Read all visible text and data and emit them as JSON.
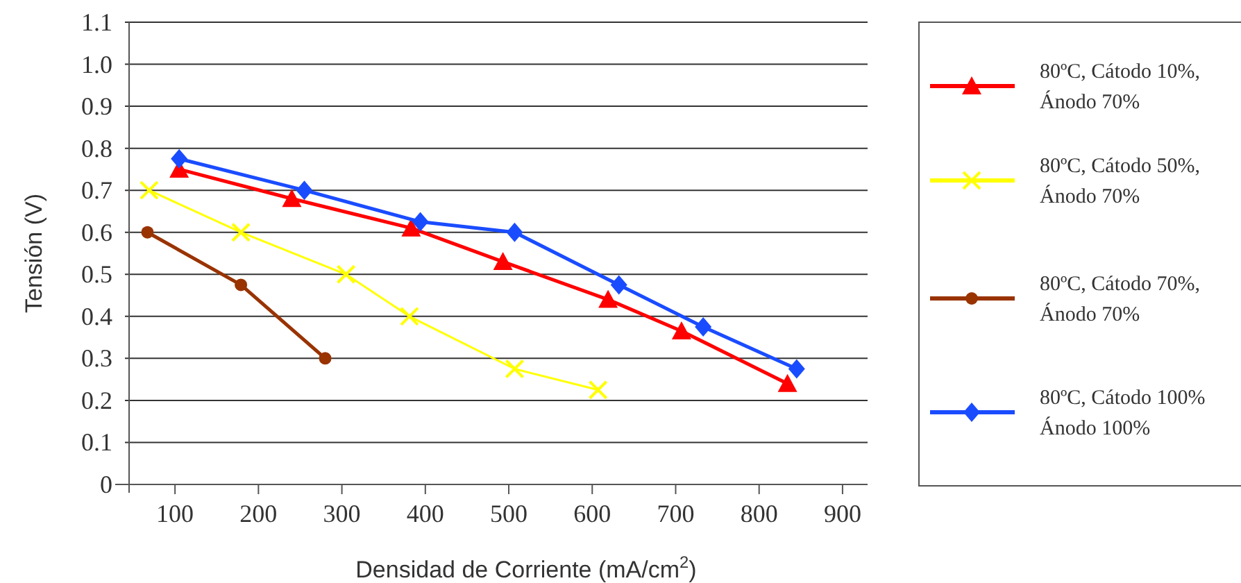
{
  "chart_data": {
    "type": "line",
    "xlabel": "Densidad de Corriente (mA/cm$^{2}$)",
    "ylabel": "Tensión (V)",
    "xlim": [
      45,
      930
    ],
    "xticks": [
      100,
      200,
      300,
      400,
      500,
      600,
      700,
      800,
      900
    ],
    "ylim": [
      0,
      1.1
    ],
    "yticks": [
      0,
      0.1,
      0.2,
      0.3,
      0.4,
      0.5,
      0.6,
      0.7,
      0.8,
      0.9,
      {
        "value": 1,
        "label": "1.0"
      },
      1.1
    ],
    "grid": "y",
    "legend": "right",
    "series": [
      {
        "name": "80ºC, Cátodo 10%, Ánodo 70%",
        "color": "#ff0000",
        "marker": "triangle",
        "x": [
          105,
          240,
          383,
          493,
          619,
          707,
          834
        ],
        "values": [
          0.75,
          0.68,
          0.61,
          0.53,
          0.44,
          0.365,
          0.24
        ]
      },
      {
        "name": "80ºC, Cátodo 50%, Ánodo 70%",
        "color": "#ffff00",
        "marker": "cross",
        "x": [
          69,
          179,
          305,
          381,
          507,
          607
        ],
        "values": [
          0.7,
          0.6,
          0.5,
          0.4,
          0.275,
          0.225
        ]
      },
      {
        "name": "80ºC, Cátodo 70%, Ánodo 70%",
        "color": "#993300",
        "marker": "circle",
        "x": [
          67,
          179,
          280
        ],
        "values": [
          0.6,
          0.475,
          0.3
        ]
      },
      {
        "name": "80ºC, Cátodo 100% Ánodo 100%",
        "color": "#1a4cff",
        "marker": "diamond",
        "x": [
          105,
          255,
          394,
          507,
          632,
          733,
          845
        ],
        "values": [
          0.775,
          0.7,
          0.625,
          0.6,
          0.475,
          0.375,
          0.275
        ]
      }
    ]
  }
}
